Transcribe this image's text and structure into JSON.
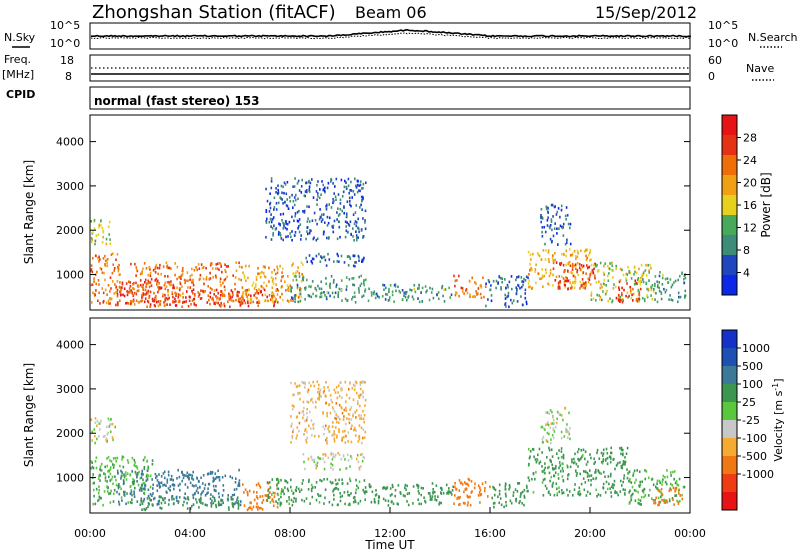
{
  "header": {
    "station": "Zhongshan Station (fitACF)",
    "beam": "Beam 06",
    "date": "15/Sep/2012"
  },
  "noise_panel": {
    "left_label": "N.Sky",
    "right_label": "N.Search",
    "left_ticks": [
      "10^5",
      "10^0"
    ],
    "right_ticks": [
      "10^5",
      "10^0"
    ]
  },
  "freq_panel": {
    "left_label_top": "Freq.",
    "left_label_unit": "[MHz]",
    "right_label": "Nave",
    "left_ticks": [
      "18",
      "8"
    ],
    "right_ticks": [
      "60",
      "0"
    ]
  },
  "cpid": {
    "label": "CPID",
    "value": "normal (fast stereo) 153"
  },
  "colors": {
    "power_scale": [
      "#0a28e6",
      "#1e46be",
      "#3c8c78",
      "#46aa5a",
      "#e6d21e",
      "#f0a014",
      "#f06e0a",
      "#e63214",
      "#e61414"
    ],
    "velocity_scale": [
      "#e61414",
      "#f03c14",
      "#f07814",
      "#f5aa32",
      "#c8c8c8",
      "#5ac83c",
      "#3c9650",
      "#3c7898",
      "#1e50b4",
      "#1432c8"
    ]
  },
  "chart_data": [
    {
      "type": "heatmap",
      "quantity": "Power",
      "ylabel": "Slant Range [km]",
      "ylim": [
        200,
        4600
      ],
      "yticks": [
        "1000",
        "2000",
        "3000",
        "4000"
      ],
      "xlim_hours": [
        0,
        24
      ],
      "colorbar_label": "Power [dB]",
      "colorbar_ticks": [
        "4",
        "8",
        "12",
        "16",
        "20",
        "24",
        "28"
      ],
      "regions": [
        {
          "t": [
            0.0,
            1.2
          ],
          "r": [
            300,
            1500
          ],
          "level": 24
        },
        {
          "t": [
            0.0,
            0.8
          ],
          "r": [
            1700,
            2300
          ],
          "level": 16
        },
        {
          "t": [
            1.0,
            3.5
          ],
          "r": [
            300,
            900
          ],
          "level": 28
        },
        {
          "t": [
            1.5,
            6.0
          ],
          "r": [
            300,
            1300
          ],
          "level": 24
        },
        {
          "t": [
            3.5,
            7.5
          ],
          "r": [
            300,
            700
          ],
          "level": 28
        },
        {
          "t": [
            6.0,
            8.5
          ],
          "r": [
            400,
            1300
          ],
          "level": 20
        },
        {
          "t": [
            8.0,
            11.0
          ],
          "r": [
            400,
            1000
          ],
          "level": 12
        },
        {
          "t": [
            8.5,
            11.0
          ],
          "r": [
            1200,
            1500
          ],
          "level": 8
        },
        {
          "t": [
            7.0,
            11.0
          ],
          "r": [
            1800,
            3200
          ],
          "level": 8
        },
        {
          "t": [
            11.0,
            14.5
          ],
          "r": [
            400,
            800
          ],
          "level": 12
        },
        {
          "t": [
            14.5,
            15.8
          ],
          "r": [
            500,
            1000
          ],
          "level": 24
        },
        {
          "t": [
            15.8,
            17.5
          ],
          "r": [
            300,
            1000
          ],
          "level": 8
        },
        {
          "t": [
            17.5,
            20.0
          ],
          "r": [
            700,
            1600
          ],
          "level": 20
        },
        {
          "t": [
            18.5,
            20.2
          ],
          "r": [
            700,
            1300
          ],
          "level": 28
        },
        {
          "t": [
            18.0,
            19.2
          ],
          "r": [
            1700,
            2600
          ],
          "level": 8
        },
        {
          "t": [
            20.0,
            22.5
          ],
          "r": [
            400,
            1300
          ],
          "level": 16
        },
        {
          "t": [
            21.0,
            22.0
          ],
          "r": [
            400,
            900
          ],
          "level": 28
        },
        {
          "t": [
            22.5,
            23.8
          ],
          "r": [
            400,
            1100
          ],
          "level": 12
        }
      ]
    },
    {
      "type": "heatmap",
      "quantity": "Velocity",
      "ylabel": "Slant Range [km]",
      "ylim": [
        200,
        4600
      ],
      "yticks": [
        "1000",
        "2000",
        "3000",
        "4000"
      ],
      "xlim_hours": [
        0,
        24
      ],
      "xticks": [
        "00:00",
        "04:00",
        "08:00",
        "12:00",
        "16:00",
        "20:00",
        "00:00"
      ],
      "xlabel": "Time UT",
      "colorbar_label": "Velocity [m s^-1]",
      "colorbar_ticks": [
        "1000",
        "500",
        "100",
        "25",
        "-25",
        "-100",
        "-500",
        "-1000"
      ],
      "regions": [
        {
          "t": [
            0.0,
            1.0
          ],
          "r": [
            1800,
            2400
          ],
          "level": 0
        },
        {
          "t": [
            0.0,
            2.5
          ],
          "r": [
            400,
            1500
          ],
          "level": 100
        },
        {
          "t": [
            1.0,
            6.0
          ],
          "r": [
            400,
            1200
          ],
          "level": 700
        },
        {
          "t": [
            2.0,
            6.0
          ],
          "r": [
            300,
            600
          ],
          "level": 300
        },
        {
          "t": [
            6.0,
            7.5
          ],
          "r": [
            300,
            900
          ],
          "level": -400
        },
        {
          "t": [
            7.0,
            11.0
          ],
          "r": [
            400,
            1000
          ],
          "level": 150
        },
        {
          "t": [
            8.5,
            11.0
          ],
          "r": [
            1200,
            1600
          ],
          "level": 0
        },
        {
          "t": [
            8.0,
            11.0
          ],
          "r": [
            1800,
            3200
          ],
          "level": -50
        },
        {
          "t": [
            11.0,
            14.5
          ],
          "r": [
            400,
            900
          ],
          "level": 200
        },
        {
          "t": [
            14.5,
            16.0
          ],
          "r": [
            400,
            1000
          ],
          "level": -300
        },
        {
          "t": [
            16.0,
            17.5
          ],
          "r": [
            300,
            900
          ],
          "level": 300
        },
        {
          "t": [
            17.5,
            21.5
          ],
          "r": [
            600,
            1700
          ],
          "level": 150
        },
        {
          "t": [
            18.0,
            19.2
          ],
          "r": [
            1800,
            2600
          ],
          "level": 20
        },
        {
          "t": [
            21.5,
            23.8
          ],
          "r": [
            400,
            1200
          ],
          "level": 100
        },
        {
          "t": [
            22.5,
            23.8
          ],
          "r": [
            400,
            800
          ],
          "level": -300
        }
      ]
    }
  ]
}
